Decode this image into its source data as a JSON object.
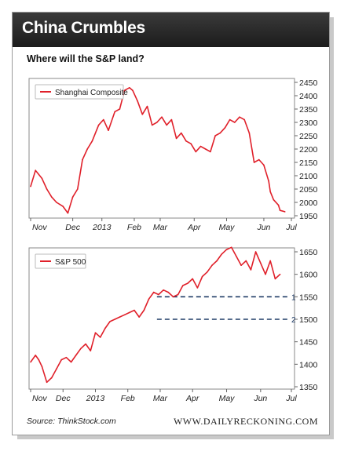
{
  "header": {
    "title": "China Crumbles"
  },
  "subtitle": "Where will the S&P land?",
  "footer": {
    "source": "Source: ThinkStock.com",
    "site": "WWW.DAILYRECKONING.COM"
  },
  "style": {
    "line_color": "#e0202a",
    "dash_color": "#1f3c66",
    "header_bg": "#262626"
  },
  "chart_data": [
    {
      "type": "line",
      "legend": "Shanghai Composite",
      "legend_position": "top-left",
      "y_axis_side": "right",
      "ylim": [
        1950,
        2450
      ],
      "yticks": [
        1950,
        2000,
        2050,
        2100,
        2150,
        2200,
        2250,
        2300,
        2350,
        2400,
        2450
      ],
      "xticks": [
        "Nov",
        "Dec",
        "2013",
        "Feb",
        "Mar",
        "Apr",
        "May",
        "Jun",
        "Jul"
      ],
      "xlim": [
        0,
        161
      ],
      "xtick_pos": [
        0,
        26,
        44,
        64,
        80,
        101,
        121,
        144,
        161
      ],
      "x": [
        0,
        3,
        7,
        10,
        13,
        16,
        20,
        23,
        26,
        29,
        32,
        35,
        38,
        42,
        45,
        48,
        52,
        55,
        58,
        61,
        63,
        66,
        69,
        72,
        75,
        78,
        81,
        84,
        87,
        90,
        93,
        96,
        99,
        102,
        105,
        108,
        111,
        114,
        117,
        120,
        123,
        126,
        129,
        132,
        135,
        138,
        141,
        144,
        147,
        148,
        150,
        153,
        154,
        157
      ],
      "values": [
        2060,
        2120,
        2090,
        2050,
        2020,
        2000,
        1985,
        1960,
        2020,
        2050,
        2160,
        2200,
        2230,
        2290,
        2310,
        2270,
        2340,
        2350,
        2420,
        2430,
        2420,
        2380,
        2330,
        2360,
        2290,
        2300,
        2320,
        2290,
        2310,
        2240,
        2260,
        2230,
        2220,
        2190,
        2210,
        2200,
        2190,
        2250,
        2260,
        2280,
        2310,
        2300,
        2320,
        2310,
        2260,
        2150,
        2160,
        2140,
        2080,
        2040,
        2010,
        1990,
        1970,
        1965
      ]
    },
    {
      "type": "line",
      "legend": "S&P 500",
      "legend_position": "top-left",
      "y_axis_side": "right",
      "ylim": [
        1350,
        1650
      ],
      "yticks": [
        1350,
        1400,
        1450,
        1500,
        1550,
        1600,
        1650
      ],
      "xticks": [
        "Nov",
        "Dec",
        "2013",
        "Feb",
        "Mar",
        "Apr",
        "May",
        "Jun",
        "Jul"
      ],
      "xlim": [
        0,
        161
      ],
      "xtick_pos": [
        0,
        20,
        40,
        60,
        80,
        100,
        121,
        142,
        161
      ],
      "x": [
        0,
        3,
        5,
        7,
        10,
        13,
        16,
        19,
        22,
        25,
        28,
        31,
        34,
        37,
        40,
        43,
        46,
        49,
        52,
        55,
        58,
        61,
        64,
        67,
        70,
        73,
        76,
        79,
        82,
        85,
        88,
        91,
        94,
        97,
        100,
        103,
        106,
        109,
        112,
        115,
        118,
        121,
        124,
        127,
        130,
        133,
        136,
        139,
        142,
        145,
        148,
        151,
        154
      ],
      "values": [
        1405,
        1420,
        1410,
        1395,
        1360,
        1370,
        1390,
        1410,
        1415,
        1405,
        1420,
        1435,
        1445,
        1430,
        1470,
        1460,
        1480,
        1495,
        1500,
        1505,
        1510,
        1515,
        1520,
        1505,
        1520,
        1545,
        1560,
        1555,
        1565,
        1560,
        1550,
        1555,
        1575,
        1580,
        1590,
        1570,
        1595,
        1605,
        1620,
        1630,
        1645,
        1655,
        1660,
        1640,
        1620,
        1630,
        1610,
        1650,
        1625,
        1600,
        1630,
        1590,
        1600
      ],
      "reference_lines": [
        {
          "label": "1",
          "value": 1550
        },
        {
          "label": "2",
          "value": 1500
        }
      ]
    }
  ]
}
